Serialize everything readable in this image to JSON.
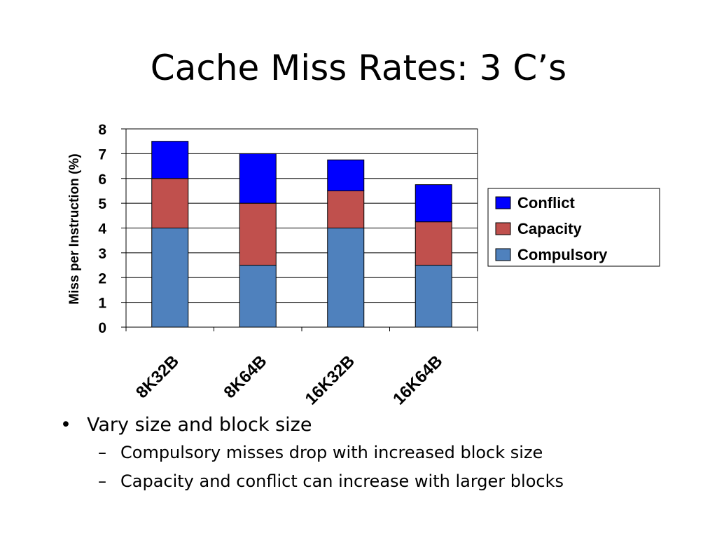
{
  "title": "Cache Miss Rates: 3 C’s",
  "chart_data": {
    "type": "bar",
    "stacked": true,
    "categories": [
      "8K32B",
      "8K64B",
      "16K32B",
      "16K64B"
    ],
    "series": [
      {
        "name": "Compulsory",
        "values": [
          4.0,
          2.5,
          4.0,
          2.5
        ],
        "color": "#4F81BD"
      },
      {
        "name": "Capacity",
        "values": [
          2.0,
          2.5,
          1.5,
          1.75
        ],
        "color": "#C0504D"
      },
      {
        "name": "Conflict",
        "values": [
          1.5,
          2.0,
          1.25,
          1.5
        ],
        "color": "#0000FF"
      }
    ],
    "ylabel": "Miss per Instruction (%)",
    "xlabel": "",
    "ylim": [
      0,
      8
    ],
    "yticks": [
      0,
      1,
      2,
      3,
      4,
      5,
      6,
      7,
      8
    ],
    "grid": true,
    "legend": "right"
  },
  "bullets": [
    {
      "level": 1,
      "text": "Vary size and block size"
    },
    {
      "level": 2,
      "text": "Compulsory misses drop with increased block size"
    },
    {
      "level": 2,
      "text": "Capacity and conflict can increase with larger blocks"
    }
  ]
}
